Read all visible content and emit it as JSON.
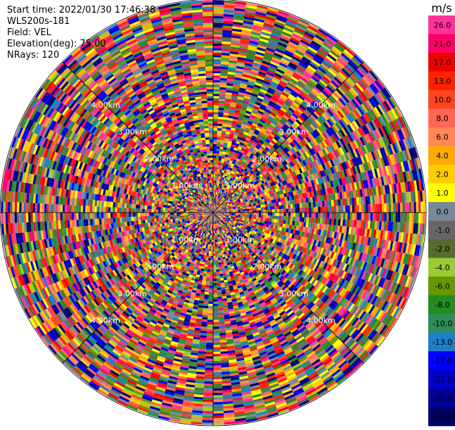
{
  "header": {
    "start_time": "Start time: 2022/01/30 17:46:38",
    "instrument": "WLS200s-181",
    "field": "Field: VEL",
    "elevation": "Elevation(deg): 75.00",
    "nrays": "NRays: 120"
  },
  "chart_data": {
    "type": "ppi-polar",
    "title": "",
    "field": "VEL",
    "n_rays": 120,
    "elevation_deg": 75.0,
    "range_rings_km": [
      1.0,
      2.0,
      3.0,
      4.0
    ],
    "ring_labels": [
      "1.00km",
      "2.00km",
      "3.00km",
      "4.00km"
    ],
    "spokes_deg": [
      0,
      45,
      90,
      135,
      180,
      225,
      270,
      315
    ],
    "max_range_km": 5.6,
    "colorbar": {
      "unit": "m/s",
      "ticks": [
        "26.0",
        "21.0",
        "17.0",
        "13.0",
        "10.0",
        "8.0",
        "6.0",
        "4.0",
        "2.0",
        "1.0",
        "0.0",
        "-1.0",
        "-2.0",
        "-4.0",
        "-6.0",
        "-8.0",
        "-10.0",
        "-13.0",
        "-17.0",
        "-21.0",
        "-26.0",
        "-30.0"
      ],
      "colors": [
        "#ff3399",
        "#ff0066",
        "#ee0000",
        "#ff2200",
        "#ff4422",
        "#ff6655",
        "#ff8855",
        "#ffaa00",
        "#ffcc00",
        "#ffff00",
        "#778899",
        "#666666",
        "#556b2f",
        "#99cc33",
        "#669900",
        "#228b22",
        "#2f8b57",
        "#1e7ec8",
        "#0000ff",
        "#0000cc",
        "#000099",
        "#000066"
      ],
      "range": [
        -30,
        30
      ]
    }
  }
}
